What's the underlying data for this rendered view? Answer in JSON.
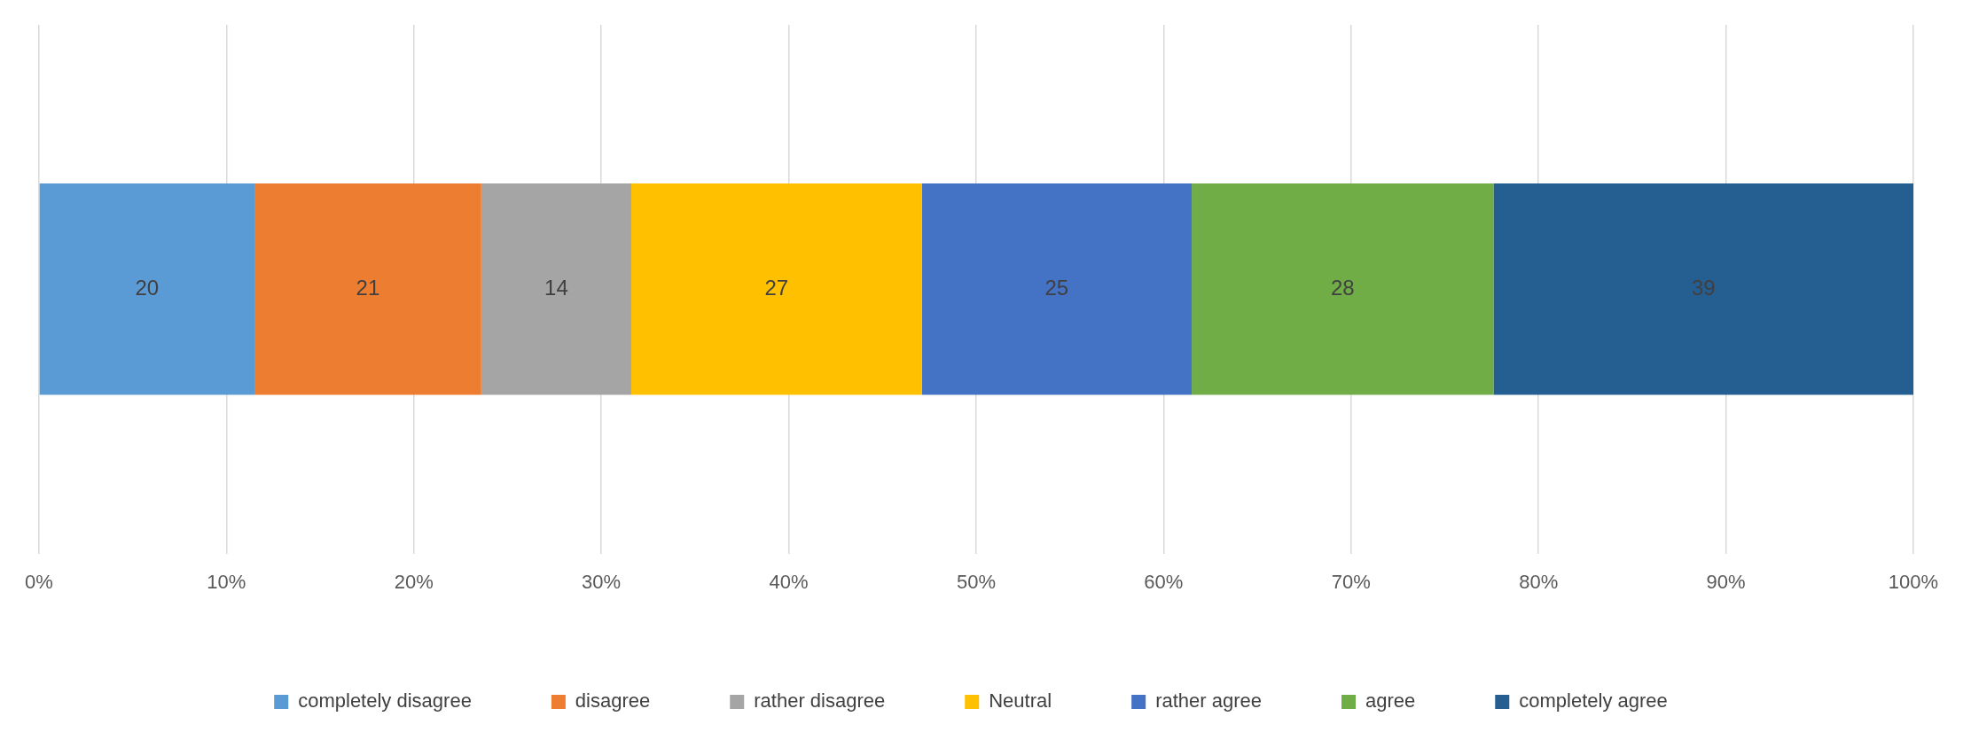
{
  "chart_data": {
    "type": "bar",
    "orientation": "horizontal",
    "stacked": true,
    "categories": [
      null
    ],
    "series": [
      {
        "name": "completely disagree",
        "color": "#5b9bd5",
        "values": [
          11.5
        ]
      },
      {
        "name": "disagree",
        "color": "#ed7d31",
        "values": [
          12.1
        ]
      },
      {
        "name": "rather disagree",
        "color": "#a5a5a5",
        "values": [
          8.0
        ]
      },
      {
        "name": "Neutral",
        "color": "#ffc000",
        "values": [
          15.5
        ]
      },
      {
        "name": "rather agree",
        "color": "#4472c4",
        "values": [
          14.4
        ]
      },
      {
        "name": "agree",
        "color": "#70ad47",
        "values": [
          16.1
        ]
      },
      {
        "name": "completely agree",
        "color": "#255e91",
        "values": [
          22.4
        ]
      }
    ],
    "annotations": [
      "20",
      "21",
      "14",
      "27",
      "25",
      "28",
      "39"
    ],
    "xlim": [
      0,
      100
    ],
    "xticks": [
      {
        "value": 0,
        "label": "0%"
      },
      {
        "value": 10,
        "label": "10%"
      },
      {
        "value": 20,
        "label": "20%"
      },
      {
        "value": 30,
        "label": "30%"
      },
      {
        "value": 40,
        "label": "40%"
      },
      {
        "value": 50,
        "label": "50%"
      },
      {
        "value": 60,
        "label": "60%"
      },
      {
        "value": 70,
        "label": "70%"
      },
      {
        "value": 80,
        "label": "80%"
      },
      {
        "value": 90,
        "label": "90%"
      },
      {
        "value": 100,
        "label": "100%"
      }
    ],
    "grid": "x",
    "legend": "bottom"
  }
}
